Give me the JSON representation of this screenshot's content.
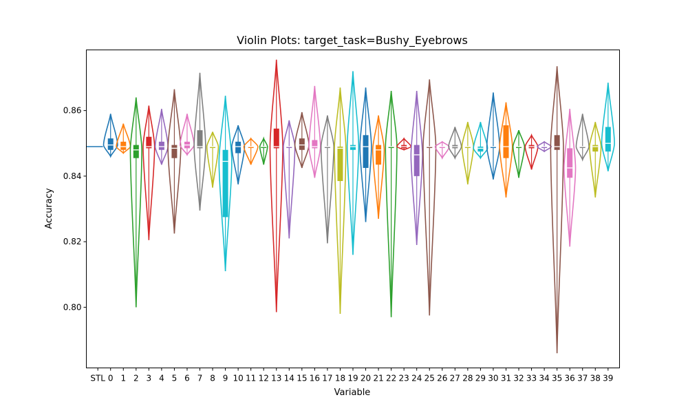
{
  "chart_data": {
    "type": "violin",
    "title": "Violin Plots: target_task=Bushy_Eyebrows",
    "xlabel": "Variable",
    "ylabel": "Accuracy",
    "ylim": [
      0.7815,
      0.8785
    ],
    "yticks": [
      0.8,
      0.82,
      0.84,
      0.86
    ],
    "ytick_labels": [
      "0.80",
      "0.82",
      "0.84",
      "0.86"
    ],
    "grid": false,
    "baseline": {
      "name": "STL",
      "value": 0.849
    },
    "categories": [
      "STL",
      "0",
      "1",
      "2",
      "3",
      "4",
      "5",
      "6",
      "7",
      "8",
      "9",
      "10",
      "11",
      "12",
      "13",
      "14",
      "15",
      "16",
      "17",
      "18",
      "19",
      "20",
      "21",
      "22",
      "23",
      "24",
      "25",
      "26",
      "27",
      "28",
      "29",
      "30",
      "31",
      "32",
      "33",
      "34",
      "35",
      "36",
      "37",
      "38",
      "39"
    ],
    "palette": [
      "#1f77b4",
      "#ff7f0e",
      "#2ca02c",
      "#d62728",
      "#9467bd",
      "#8c564b",
      "#e377c2",
      "#7f7f7f",
      "#bcbd22",
      "#17becf"
    ],
    "series": [
      {
        "name": "0",
        "min": 0.846,
        "max": 0.859,
        "q1": 0.848,
        "median": 0.8495,
        "q3": 0.8515,
        "width": 0.55
      },
      {
        "name": "1",
        "min": 0.847,
        "max": 0.856,
        "q1": 0.848,
        "median": 0.849,
        "q3": 0.8505,
        "width": 0.55
      },
      {
        "name": "2",
        "min": 0.8,
        "max": 0.864,
        "q1": 0.8455,
        "median": 0.848,
        "q3": 0.8495,
        "width": 0.45
      },
      {
        "name": "3",
        "min": 0.8205,
        "max": 0.8615,
        "q1": 0.8485,
        "median": 0.849,
        "q3": 0.852,
        "width": 0.45
      },
      {
        "name": "4",
        "min": 0.8435,
        "max": 0.8605,
        "q1": 0.848,
        "median": 0.849,
        "q3": 0.8505,
        "width": 0.5
      },
      {
        "name": "5",
        "min": 0.8225,
        "max": 0.8665,
        "q1": 0.8455,
        "median": 0.8485,
        "q3": 0.8495,
        "width": 0.5
      },
      {
        "name": "6",
        "min": 0.8465,
        "max": 0.859,
        "q1": 0.8485,
        "median": 0.8495,
        "q3": 0.8505,
        "width": 0.55
      },
      {
        "name": "7",
        "min": 0.8295,
        "max": 0.8715,
        "q1": 0.8485,
        "median": 0.849,
        "q3": 0.854,
        "width": 0.45
      },
      {
        "name": "8",
        "min": 0.8365,
        "max": 0.8535,
        "q1": 0.849,
        "median": 0.849,
        "q3": 0.849,
        "width": 0.45
      },
      {
        "name": "9",
        "min": 0.811,
        "max": 0.8645,
        "q1": 0.8275,
        "median": 0.8445,
        "q3": 0.848,
        "width": 0.5
      },
      {
        "name": "10",
        "min": 0.8375,
        "max": 0.8555,
        "q1": 0.847,
        "median": 0.849,
        "q3": 0.8505,
        "width": 0.5
      },
      {
        "name": "11",
        "min": 0.8435,
        "max": 0.8515,
        "q1": 0.849,
        "median": 0.849,
        "q3": 0.849,
        "width": 0.55
      },
      {
        "name": "12",
        "min": 0.8435,
        "max": 0.8515,
        "q1": 0.849,
        "median": 0.849,
        "q3": 0.849,
        "width": 0.3
      },
      {
        "name": "13",
        "min": 0.7985,
        "max": 0.8755,
        "q1": 0.8485,
        "median": 0.849,
        "q3": 0.8545,
        "width": 0.5
      },
      {
        "name": "14",
        "min": 0.821,
        "max": 0.857,
        "q1": 0.849,
        "median": 0.849,
        "q3": 0.849,
        "width": 0.45
      },
      {
        "name": "15",
        "min": 0.8425,
        "max": 0.8595,
        "q1": 0.848,
        "median": 0.8495,
        "q3": 0.8515,
        "width": 0.55
      },
      {
        "name": "16",
        "min": 0.8395,
        "max": 0.8675,
        "q1": 0.8485,
        "median": 0.849,
        "q3": 0.851,
        "width": 0.45
      },
      {
        "name": "17",
        "min": 0.8195,
        "max": 0.8585,
        "q1": 0.849,
        "median": 0.849,
        "q3": 0.849,
        "width": 0.5
      },
      {
        "name": "18",
        "min": 0.798,
        "max": 0.867,
        "q1": 0.8385,
        "median": 0.8485,
        "q3": 0.849,
        "width": 0.45
      },
      {
        "name": "19",
        "min": 0.816,
        "max": 0.872,
        "q1": 0.848,
        "median": 0.849,
        "q3": 0.8495,
        "width": 0.45
      },
      {
        "name": "20",
        "min": 0.826,
        "max": 0.867,
        "q1": 0.8425,
        "median": 0.849,
        "q3": 0.8525,
        "width": 0.45
      },
      {
        "name": "21",
        "min": 0.827,
        "max": 0.8585,
        "q1": 0.8435,
        "median": 0.848,
        "q3": 0.8495,
        "width": 0.45
      },
      {
        "name": "22",
        "min": 0.797,
        "max": 0.866,
        "q1": 0.849,
        "median": 0.849,
        "q3": 0.849,
        "width": 0.45
      },
      {
        "name": "23",
        "min": 0.848,
        "max": 0.8515,
        "q1": 0.8485,
        "median": 0.849,
        "q3": 0.8495,
        "width": 0.55
      },
      {
        "name": "24",
        "min": 0.819,
        "max": 0.866,
        "q1": 0.84,
        "median": 0.8465,
        "q3": 0.8495,
        "width": 0.45
      },
      {
        "name": "25",
        "min": 0.7975,
        "max": 0.8695,
        "q1": 0.849,
        "median": 0.849,
        "q3": 0.849,
        "width": 0.5
      },
      {
        "name": "26",
        "min": 0.8455,
        "max": 0.8505,
        "q1": 0.849,
        "median": 0.849,
        "q3": 0.849,
        "width": 0.55
      },
      {
        "name": "27",
        "min": 0.8455,
        "max": 0.855,
        "q1": 0.8485,
        "median": 0.849,
        "q3": 0.8495,
        "width": 0.5
      },
      {
        "name": "28",
        "min": 0.8375,
        "max": 0.8565,
        "q1": 0.849,
        "median": 0.849,
        "q3": 0.849,
        "width": 0.45
      },
      {
        "name": "29",
        "min": 0.8455,
        "max": 0.8565,
        "q1": 0.8475,
        "median": 0.8485,
        "q3": 0.849,
        "width": 0.55
      },
      {
        "name": "30",
        "min": 0.839,
        "max": 0.8655,
        "q1": 0.849,
        "median": 0.849,
        "q3": 0.849,
        "width": 0.5
      },
      {
        "name": "31",
        "min": 0.8335,
        "max": 0.8625,
        "q1": 0.8455,
        "median": 0.849,
        "q3": 0.8555,
        "width": 0.5
      },
      {
        "name": "32",
        "min": 0.8395,
        "max": 0.854,
        "q1": 0.849,
        "median": 0.849,
        "q3": 0.849,
        "width": 0.45
      },
      {
        "name": "33",
        "min": 0.842,
        "max": 0.8525,
        "q1": 0.8485,
        "median": 0.849,
        "q3": 0.8495,
        "width": 0.5
      },
      {
        "name": "34",
        "min": 0.8475,
        "max": 0.8505,
        "q1": 0.849,
        "median": 0.849,
        "q3": 0.849,
        "width": 0.55
      },
      {
        "name": "35",
        "min": 0.786,
        "max": 0.8735,
        "q1": 0.848,
        "median": 0.849,
        "q3": 0.8525,
        "width": 0.5
      },
      {
        "name": "36",
        "min": 0.8185,
        "max": 0.8605,
        "q1": 0.8395,
        "median": 0.8425,
        "q3": 0.8485,
        "width": 0.45
      },
      {
        "name": "37",
        "min": 0.845,
        "max": 0.859,
        "q1": 0.849,
        "median": 0.849,
        "q3": 0.849,
        "width": 0.5
      },
      {
        "name": "38",
        "min": 0.8335,
        "max": 0.8565,
        "q1": 0.8475,
        "median": 0.849,
        "q3": 0.8495,
        "width": 0.45
      },
      {
        "name": "39",
        "min": 0.8415,
        "max": 0.8685,
        "q1": 0.8475,
        "median": 0.85,
        "q3": 0.855,
        "width": 0.5
      }
    ]
  }
}
